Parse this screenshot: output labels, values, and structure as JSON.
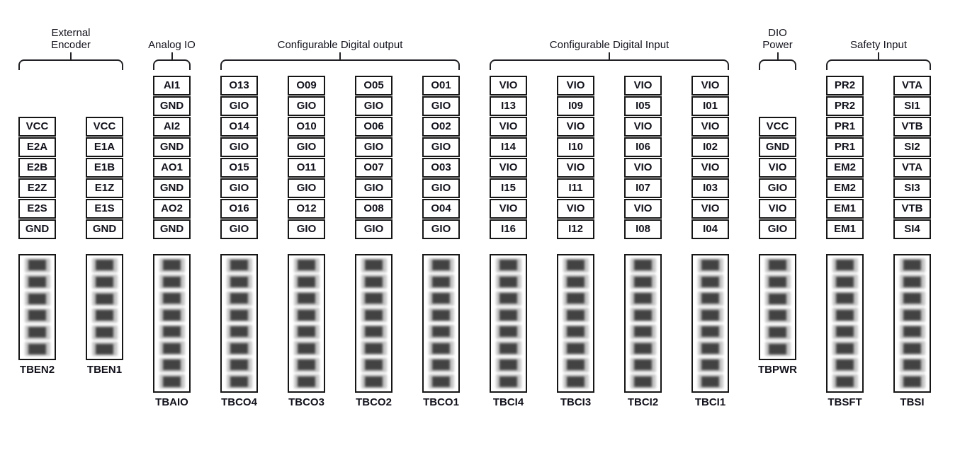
{
  "colors": {
    "background": "#ffffff",
    "line": "#161616",
    "text": "#12121c",
    "pin_contact_dark": "#424242",
    "pin_contact_halo": "#c8c8c8"
  },
  "groups": [
    {
      "id": "external-encoder",
      "title_lines": [
        "External",
        "Encoder"
      ],
      "columns": [
        {
          "connector": "TBEN2",
          "pins": [
            "VCC",
            "E2A",
            "E2B",
            "E2Z",
            "E2S",
            "GND"
          ]
        },
        {
          "connector": "TBEN1",
          "pins": [
            "VCC",
            "E1A",
            "E1B",
            "E1Z",
            "E1S",
            "GND"
          ]
        }
      ]
    },
    {
      "id": "analog-io",
      "title_lines": [
        "Analog IO"
      ],
      "columns": [
        {
          "connector": "TBAIO",
          "pins": [
            "AI1",
            "GND",
            "AI2",
            "GND",
            "AO1",
            "GND",
            "AO2",
            "GND"
          ]
        }
      ]
    },
    {
      "id": "configurable-digital-output",
      "title_lines": [
        "Configurable Digital output"
      ],
      "columns": [
        {
          "connector": "TBCO4",
          "pins": [
            "O13",
            "GIO",
            "O14",
            "GIO",
            "O15",
            "GIO",
            "O16",
            "GIO"
          ]
        },
        {
          "connector": "TBCO3",
          "pins": [
            "O09",
            "GIO",
            "O10",
            "GIO",
            "O11",
            "GIO",
            "O12",
            "GIO"
          ]
        },
        {
          "connector": "TBCO2",
          "pins": [
            "O05",
            "GIO",
            "O06",
            "GIO",
            "O07",
            "GIO",
            "O08",
            "GIO"
          ]
        },
        {
          "connector": "TBCO1",
          "pins": [
            "O01",
            "GIO",
            "O02",
            "GIO",
            "O03",
            "GIO",
            "O04",
            "GIO"
          ]
        }
      ]
    },
    {
      "id": "configurable-digital-input",
      "title_lines": [
        "Configurable Digital Input"
      ],
      "columns": [
        {
          "connector": "TBCI4",
          "pins": [
            "VIO",
            "I13",
            "VIO",
            "I14",
            "VIO",
            "I15",
            "VIO",
            "I16"
          ]
        },
        {
          "connector": "TBCI3",
          "pins": [
            "VIO",
            "I09",
            "VIO",
            "I10",
            "VIO",
            "I11",
            "VIO",
            "I12"
          ]
        },
        {
          "connector": "TBCI2",
          "pins": [
            "VIO",
            "I05",
            "VIO",
            "I06",
            "VIO",
            "I07",
            "VIO",
            "I08"
          ]
        },
        {
          "connector": "TBCI1",
          "pins": [
            "VIO",
            "I01",
            "VIO",
            "I02",
            "VIO",
            "I03",
            "VIO",
            "I04"
          ]
        }
      ]
    },
    {
      "id": "dio-power",
      "title_lines": [
        "DIO",
        "Power"
      ],
      "columns": [
        {
          "connector": "TBPWR",
          "pins": [
            "VCC",
            "GND",
            "VIO",
            "GIO",
            "VIO",
            "GIO"
          ]
        }
      ]
    },
    {
      "id": "safety-input",
      "title_lines": [
        "Safety Input"
      ],
      "columns": [
        {
          "connector": "TBSFT",
          "pins": [
            "PR2",
            "PR2",
            "PR1",
            "PR1",
            "EM2",
            "EM2",
            "EM1",
            "EM1"
          ]
        },
        {
          "connector": "TBSI",
          "pins": [
            "VTA",
            "SI1",
            "VTB",
            "SI2",
            "VTA",
            "SI3",
            "VTB",
            "SI4"
          ]
        }
      ]
    }
  ]
}
